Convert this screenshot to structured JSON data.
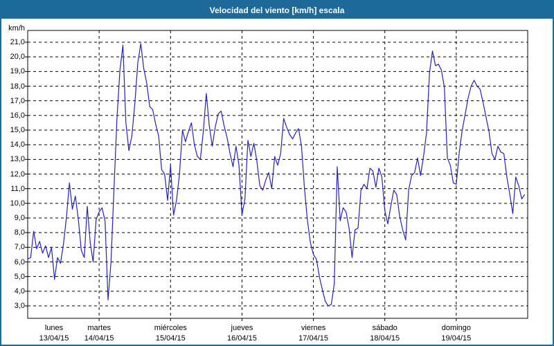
{
  "window": {
    "title": "Velocidad del viento [km/h] escala"
  },
  "colors": {
    "titlebar_bg": "#1c699a",
    "window_border": "#1c699a",
    "plot_bg": "#ffffff",
    "frame": "#000000",
    "grid": "#000000",
    "line": "#2020cc",
    "text": "#000000"
  },
  "chart_data": {
    "type": "line",
    "title": "Velocidad del viento [km/h] escala",
    "ylabel": "km/h",
    "ylim": [
      3,
      21
    ],
    "y_tick_step": 1,
    "y_tick_labels": [
      "21,0",
      "20,0",
      "19,0",
      "18,0",
      "17,0",
      "16,0",
      "15,0",
      "14,0",
      "13,0",
      "12,0",
      "11,0",
      "10,0",
      "9,0",
      "8,0",
      "7,0",
      "6,0",
      "5,0",
      "4,0",
      "3,0"
    ],
    "grid": "dashed",
    "legend": "none",
    "x_categories": [
      {
        "label": "lunes",
        "date": "13/04/15"
      },
      {
        "label": "martes",
        "date": "14/04/15"
      },
      {
        "label": "miércoles",
        "date": "15/04/15"
      },
      {
        "label": "jueves",
        "date": "16/04/15"
      },
      {
        "label": "viernes",
        "date": "17/04/15"
      },
      {
        "label": "sábado",
        "date": "18/04/15"
      },
      {
        "label": "domingo",
        "date": "19/04/15"
      }
    ],
    "samples_per_day": 24,
    "series": [
      {
        "name": "Velocidad del viento [km/h]",
        "values": [
          6.2,
          6.3,
          8.1,
          6.9,
          7.4,
          6.6,
          7.1,
          6.3,
          7.0,
          4.8,
          6.3,
          5.9,
          7.2,
          9.0,
          11.4,
          9.6,
          10.5,
          8.9,
          6.8,
          6.3,
          9.8,
          7.3,
          6.0,
          8.9,
          9.4,
          9.7,
          8.8,
          3.4,
          6.0,
          11.0,
          15.8,
          19.1,
          20.8,
          15.5,
          13.6,
          14.6,
          16.8,
          19.6,
          20.9,
          19.2,
          18.2,
          16.6,
          16.4,
          15.4,
          14.6,
          12.3,
          12.0,
          10.2,
          12.6,
          9.2,
          10.2,
          12.0,
          15.0,
          14.2,
          14.9,
          15.5,
          14.0,
          13.2,
          13.0,
          14.9,
          17.5,
          15.3,
          13.9,
          15.2,
          16.1,
          16.3,
          15.3,
          14.5,
          13.4,
          12.5,
          13.9,
          12.6,
          9.2,
          10.3,
          14.3,
          13.2,
          14.1,
          12.9,
          11.2,
          10.9,
          11.6,
          12.1,
          11.0,
          13.2,
          12.6,
          13.4,
          15.8,
          15.2,
          14.7,
          14.4,
          14.8,
          15.1,
          13.9,
          11.0,
          8.8,
          7.3,
          6.5,
          6.2,
          5.0,
          4.1,
          3.3,
          3.0,
          3.1,
          4.5,
          12.5,
          8.8,
          9.7,
          9.4,
          8.3,
          6.3,
          8.2,
          8.3,
          10.9,
          11.3,
          11.0,
          12.4,
          12.2,
          11.1,
          12.4,
          11.8,
          9.5,
          8.6,
          9.8,
          10.9,
          10.6,
          9.1,
          8.2,
          7.5,
          10.9,
          11.9,
          12.1,
          13.1,
          11.9,
          13.2,
          14.8,
          18.9,
          20.4,
          19.4,
          19.5,
          19.1,
          17.9,
          13.1,
          12.6,
          11.4,
          11.3,
          13.5,
          15.0,
          16.1,
          17.2,
          18.0,
          18.4,
          18.0,
          17.8,
          16.9,
          15.9,
          14.9,
          13.4,
          13.0,
          13.9,
          13.5,
          13.4,
          11.8,
          10.6,
          9.3,
          11.8,
          11.2,
          10.3,
          10.6
        ]
      }
    ]
  }
}
